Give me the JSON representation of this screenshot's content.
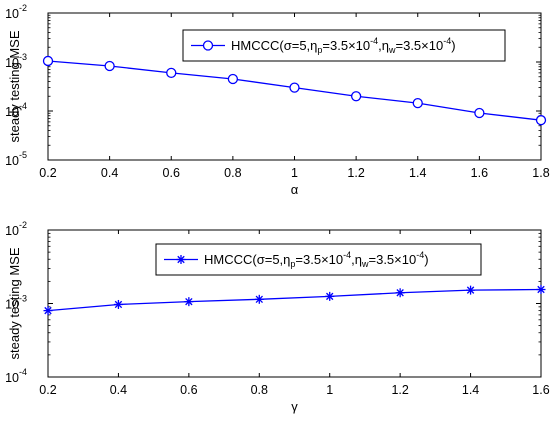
{
  "chart_data": [
    {
      "type": "line",
      "ylabel": "steady testing MSE",
      "xlabel": "α",
      "yscale": "log",
      "ylim": [
        1e-05,
        0.01
      ],
      "xlim": [
        0.2,
        1.8
      ],
      "xticks": [
        "0.2",
        "0.4",
        "0.6",
        "0.8",
        "1",
        "1.2",
        "1.4",
        "1.6",
        "1.8"
      ],
      "yticks": [
        {
          "base": "10",
          "exp": "-5"
        },
        {
          "base": "10",
          "exp": "-4"
        },
        {
          "base": "10",
          "exp": "-3"
        },
        {
          "base": "10",
          "exp": "-2"
        }
      ],
      "legend_position": "top-right",
      "grid": false,
      "series": [
        {
          "name": "HMCCC(σ=5,ηp=3.5×10^-4,ηw=3.5×10^-4)",
          "legend_parts": {
            "prefix": "HMCCC(σ=5,η",
            "sub1": "p",
            "mid1": "=3.5×10",
            "sup1": "-4",
            "mid2": ",η",
            "sub2": "w",
            "mid3": "=3.5×10",
            "sup2": "-4",
            "suffix": ")"
          },
          "marker": "circle",
          "color": "#0000ff",
          "x": [
            0.2,
            0.4,
            0.6,
            0.8,
            1.0,
            1.2,
            1.4,
            1.6,
            1.8
          ],
          "y": [
            0.00105,
            0.00083,
            0.0006,
            0.00045,
            0.0003,
            0.0002,
            0.000145,
            9.1e-05,
            6.5e-05
          ]
        }
      ]
    },
    {
      "type": "line",
      "ylabel": "steady testing MSE",
      "xlabel": "γ",
      "yscale": "log",
      "ylim": [
        0.0001,
        0.01
      ],
      "xlim": [
        0.2,
        1.6
      ],
      "xticks": [
        "0.2",
        "0.4",
        "0.6",
        "0.8",
        "1",
        "1.2",
        "1.4",
        "1.6"
      ],
      "yticks": [
        {
          "base": "10",
          "exp": "-4"
        },
        {
          "base": "10",
          "exp": "-3"
        },
        {
          "base": "10",
          "exp": "-2"
        }
      ],
      "legend_position": "top-right",
      "grid": false,
      "series": [
        {
          "name": "HMCCC(σ=5,ηp=3.5×10^-4,ηw=3.5×10^-4)",
          "legend_parts": {
            "prefix": "HMCCC(σ=5,η",
            "sub1": "p",
            "mid1": "=3.5×10",
            "sup1": "-4",
            "mid2": ",η",
            "sub2": "w",
            "mid3": "=3.5×10",
            "sup2": "-4",
            "suffix": ")"
          },
          "marker": "asterisk",
          "color": "#0000ff",
          "x": [
            0.2,
            0.4,
            0.6,
            0.8,
            1.0,
            1.2,
            1.4,
            1.6
          ],
          "y": [
            0.0008,
            0.00097,
            0.00106,
            0.00114,
            0.00125,
            0.0014,
            0.00152,
            0.00155
          ]
        }
      ]
    }
  ]
}
